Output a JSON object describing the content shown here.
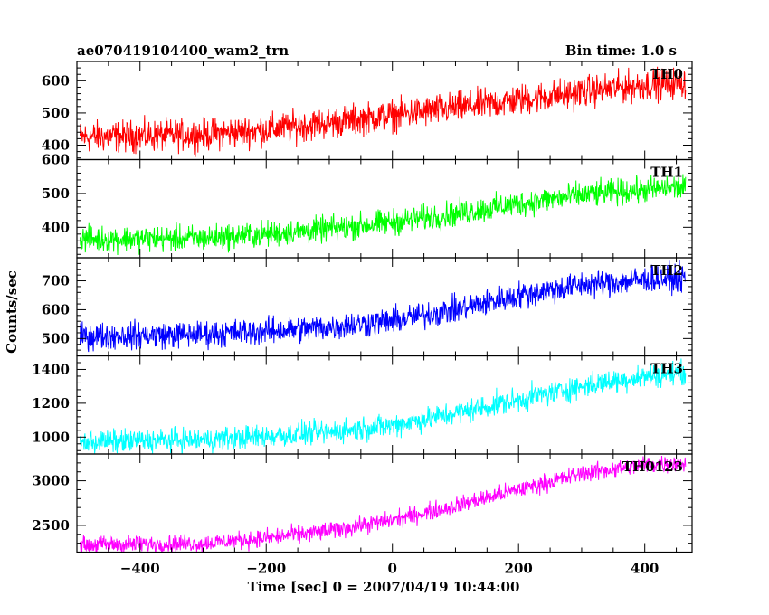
{
  "header": {
    "title": "ae070419104400_wam2_trn",
    "bin_time": "Bin time: 1.0 s"
  },
  "axes": {
    "xlabel": "Time [sec] 0 = 2007/04/19 10:44:00",
    "ylabel": "Counts/sec"
  },
  "chart_data": {
    "type": "line",
    "title": "ae070419104400_wam2_trn",
    "xlabel": "Time [sec] 0 = 2007/04/19 10:44:00",
    "ylabel": "Counts/sec",
    "xlim": [
      -500,
      475
    ],
    "x_ticks": [
      -400,
      -200,
      0,
      200,
      400
    ],
    "x_tick_labels": [
      "−400",
      "−200",
      "0",
      "200",
      "400"
    ],
    "grid": false,
    "bin_time_s": 1.0,
    "panels": [
      {
        "name": "TH0",
        "color": "#ff0000",
        "ylim": [
          355,
          660
        ],
        "y_ticks": [
          400,
          500,
          600
        ],
        "trend": [
          [
            -495,
            425
          ],
          [
            -300,
            432
          ],
          [
            -200,
            448
          ],
          [
            -100,
            470
          ],
          [
            0,
            492
          ],
          [
            100,
            515
          ],
          [
            200,
            540
          ],
          [
            300,
            565
          ],
          [
            400,
            588
          ],
          [
            465,
            595
          ]
        ],
        "noise": 42
      },
      {
        "name": "TH1",
        "color": "#00ff00",
        "ylim": [
          310,
          600
        ],
        "y_ticks": [
          400,
          500,
          600
        ],
        "trend": [
          [
            -495,
            365
          ],
          [
            -300,
            368
          ],
          [
            -200,
            380
          ],
          [
            -100,
            395
          ],
          [
            0,
            415
          ],
          [
            100,
            440
          ],
          [
            200,
            470
          ],
          [
            300,
            495
          ],
          [
            400,
            510
          ],
          [
            465,
            520
          ]
        ],
        "noise": 33
      },
      {
        "name": "TH2",
        "color": "#0000ff",
        "ylim": [
          440,
          780
        ],
        "y_ticks": [
          500,
          600,
          700
        ],
        "trend": [
          [
            -495,
            508
          ],
          [
            -300,
            515
          ],
          [
            -200,
            525
          ],
          [
            -100,
            540
          ],
          [
            0,
            562
          ],
          [
            100,
            600
          ],
          [
            200,
            650
          ],
          [
            300,
            685
          ],
          [
            400,
            705
          ],
          [
            465,
            710
          ]
        ],
        "noise": 40
      },
      {
        "name": "TH3",
        "color": "#00ffff",
        "ylim": [
          900,
          1480
        ],
        "y_ticks": [
          1000,
          1200,
          1400
        ],
        "trend": [
          [
            -495,
            970
          ],
          [
            -300,
            985
          ],
          [
            -200,
            1005
          ],
          [
            -100,
            1030
          ],
          [
            0,
            1070
          ],
          [
            100,
            1140
          ],
          [
            200,
            1220
          ],
          [
            300,
            1300
          ],
          [
            400,
            1360
          ],
          [
            465,
            1385
          ]
        ],
        "noise": 60
      },
      {
        "name": "TH0123",
        "color": "#ff00ff",
        "ylim": [
          2200,
          3300
        ],
        "y_ticks": [
          2500,
          3000
        ],
        "trend": [
          [
            -495,
            2280
          ],
          [
            -300,
            2300
          ],
          [
            -200,
            2360
          ],
          [
            -100,
            2440
          ],
          [
            0,
            2560
          ],
          [
            100,
            2720
          ],
          [
            200,
            2900
          ],
          [
            300,
            3080
          ],
          [
            400,
            3180
          ],
          [
            465,
            3200
          ]
        ],
        "noise": 85
      }
    ]
  }
}
